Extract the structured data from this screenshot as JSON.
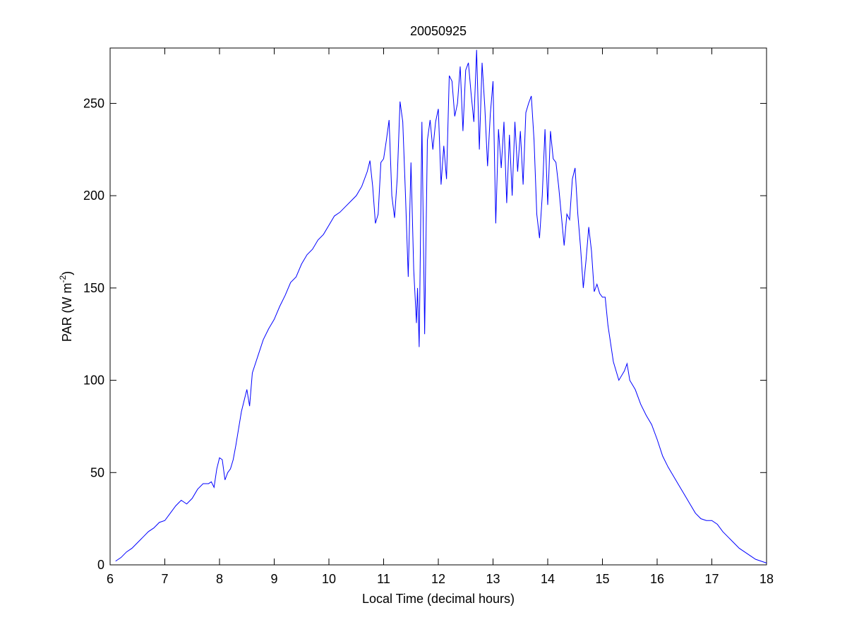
{
  "chart_data": {
    "type": "line",
    "title": "20050925",
    "xlabel": "Local Time (decimal hours)",
    "ylabel": [
      "PAR (W m",
      "-2",
      ")"
    ],
    "color": "#0000ff",
    "xlim": [
      6,
      18
    ],
    "xticks": [
      6,
      7,
      8,
      9,
      10,
      11,
      12,
      13,
      14,
      15,
      16,
      17,
      18
    ],
    "ylim": [
      0,
      280
    ],
    "yticks": [
      0,
      50,
      100,
      150,
      200,
      250
    ],
    "grid": false,
    "x": [
      6.1,
      6.2,
      6.3,
      6.4,
      6.5,
      6.6,
      6.7,
      6.8,
      6.9,
      7.0,
      7.1,
      7.2,
      7.3,
      7.4,
      7.5,
      7.6,
      7.7,
      7.8,
      7.85,
      7.9,
      7.95,
      8.0,
      8.05,
      8.1,
      8.15,
      8.2,
      8.25,
      8.3,
      8.4,
      8.5,
      8.55,
      8.6,
      8.7,
      8.8,
      8.9,
      9.0,
      9.1,
      9.2,
      9.3,
      9.4,
      9.5,
      9.6,
      9.7,
      9.8,
      9.9,
      10.0,
      10.1,
      10.2,
      10.3,
      10.4,
      10.5,
      10.6,
      10.7,
      10.75,
      10.8,
      10.85,
      10.9,
      10.95,
      11.0,
      11.05,
      11.1,
      11.15,
      11.2,
      11.25,
      11.3,
      11.35,
      11.4,
      11.45,
      11.5,
      11.55,
      11.6,
      11.62,
      11.65,
      11.7,
      11.75,
      11.8,
      11.85,
      11.9,
      11.95,
      12.0,
      12.05,
      12.1,
      12.15,
      12.2,
      12.25,
      12.3,
      12.35,
      12.4,
      12.45,
      12.5,
      12.55,
      12.6,
      12.65,
      12.7,
      12.75,
      12.8,
      12.85,
      12.9,
      12.95,
      13.0,
      13.05,
      13.1,
      13.15,
      13.2,
      13.25,
      13.3,
      13.35,
      13.4,
      13.45,
      13.5,
      13.55,
      13.6,
      13.65,
      13.7,
      13.75,
      13.8,
      13.85,
      13.9,
      13.95,
      14.0,
      14.05,
      14.1,
      14.15,
      14.2,
      14.3,
      14.35,
      14.4,
      14.45,
      14.5,
      14.55,
      14.6,
      14.65,
      14.7,
      14.75,
      14.8,
      14.85,
      14.9,
      14.95,
      15.0,
      15.05,
      15.1,
      15.2,
      15.3,
      15.4,
      15.45,
      15.5,
      15.6,
      15.7,
      15.8,
      15.9,
      16.0,
      16.1,
      16.2,
      16.3,
      16.4,
      16.5,
      16.6,
      16.7,
      16.8,
      16.9,
      17.0,
      17.1,
      17.2,
      17.3,
      17.4,
      17.5,
      17.6,
      17.7,
      17.8,
      17.9,
      18.0
    ],
    "values": [
      2,
      4,
      7,
      9,
      12,
      15,
      18,
      20,
      23,
      24,
      28,
      32,
      35,
      33,
      36,
      41,
      44,
      44,
      45,
      42,
      52,
      58,
      57,
      46,
      50,
      52,
      57,
      65,
      83,
      95,
      86,
      104,
      113,
      122,
      128,
      133,
      140,
      146,
      153,
      156,
      163,
      168,
      171,
      176,
      179,
      184,
      189,
      191,
      194,
      197,
      200,
      205,
      213,
      219,
      205,
      185,
      190,
      218,
      220,
      230,
      241,
      200,
      188,
      210,
      251,
      240,
      200,
      156,
      218,
      160,
      131,
      150,
      118,
      240,
      125,
      230,
      241,
      225,
      240,
      247,
      206,
      227,
      209,
      265,
      262,
      243,
      250,
      270,
      235,
      268,
      272,
      255,
      240,
      279,
      225,
      272,
      248,
      216,
      244,
      262,
      185,
      236,
      215,
      240,
      196,
      233,
      200,
      240,
      213,
      235,
      206,
      245,
      250,
      254,
      230,
      190,
      177,
      200,
      236,
      195,
      235,
      220,
      218,
      205,
      173,
      190,
      187,
      209,
      215,
      190,
      172,
      150,
      165,
      183,
      170,
      148,
      152,
      147,
      145,
      145,
      130,
      110,
      100,
      105,
      109,
      100,
      95,
      87,
      81,
      76,
      68,
      59,
      53,
      48,
      43,
      38,
      33,
      28,
      25,
      24,
      24,
      22,
      18,
      15,
      12,
      9,
      7,
      5,
      3,
      2,
      1
    ]
  }
}
